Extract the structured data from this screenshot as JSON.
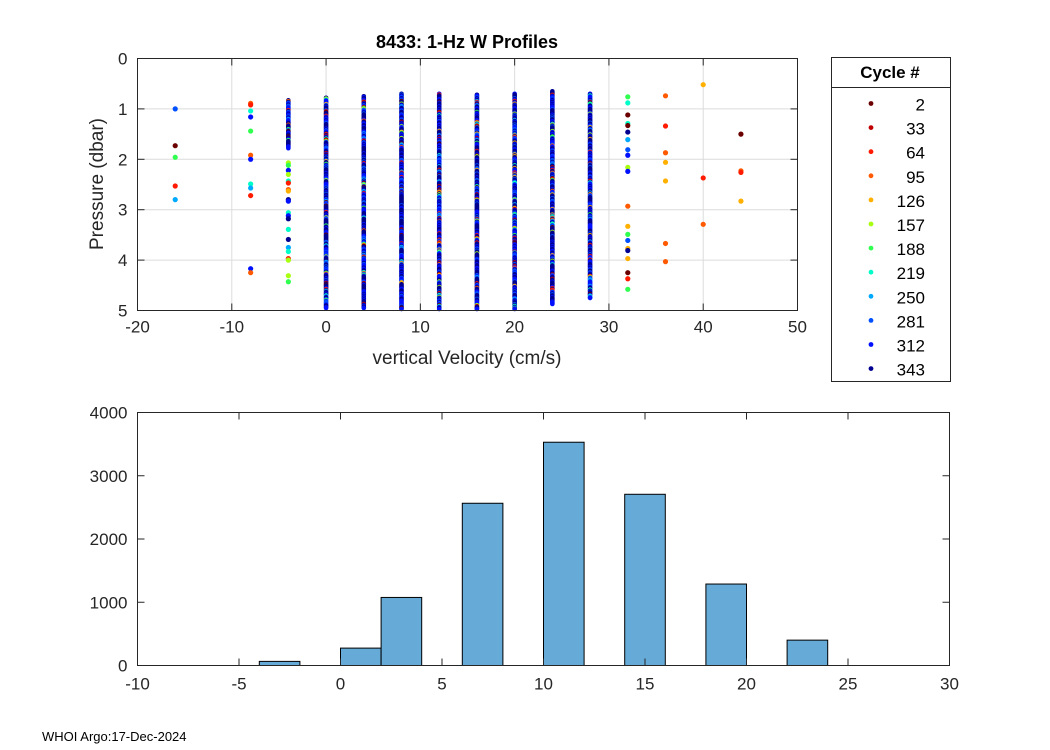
{
  "footer": "WHOI Argo:17-Dec-2024",
  "chart_data": [
    {
      "type": "scatter",
      "title": "8433: 1-Hz W Profiles",
      "xlabel": "vertical Velocity (cm/s)",
      "ylabel": "Pressure (dbar)",
      "xlim": [
        -20,
        50
      ],
      "ylim": [
        0,
        5
      ],
      "y_reversed": true,
      "grid": true,
      "xticks": [
        -20,
        -10,
        0,
        10,
        20,
        30,
        40,
        50
      ],
      "yticks": [
        0,
        1,
        2,
        3,
        4,
        5
      ],
      "legend": {
        "title": "Cycle #",
        "placement": "outside-right",
        "entries": [
          {
            "label": "2",
            "color": "#6b0000"
          },
          {
            "label": "33",
            "color": "#c00000"
          },
          {
            "label": "64",
            "color": "#ff1a00"
          },
          {
            "label": "95",
            "color": "#ff5a00"
          },
          {
            "label": "126",
            "color": "#ffb000"
          },
          {
            "label": "157",
            "color": "#a8ff10"
          },
          {
            "label": "188",
            "color": "#30ff50"
          },
          {
            "label": "219",
            "color": "#00ffc8"
          },
          {
            "label": "250",
            "color": "#00aaff"
          },
          {
            "label": "281",
            "color": "#0050ff"
          },
          {
            "label": "312",
            "color": "#0010ff"
          },
          {
            "label": "343",
            "color": "#000090"
          }
        ]
      },
      "sparse_points": [
        {
          "v": -16,
          "p": 1.0,
          "cycle": "281"
        },
        {
          "v": -16,
          "p": 1.73,
          "cycle": "2"
        },
        {
          "v": -16,
          "p": 1.96,
          "cycle": "188"
        },
        {
          "v": -16,
          "p": 2.53,
          "cycle": "64"
        },
        {
          "v": -16,
          "p": 2.8,
          "cycle": "250"
        },
        {
          "v": -8,
          "p": 0.89,
          "cycle": "95"
        },
        {
          "v": -8,
          "p": 0.92,
          "cycle": "64"
        },
        {
          "v": -8,
          "p": 1.04,
          "cycle": "219"
        },
        {
          "v": -8,
          "p": 1.16,
          "cycle": "312"
        },
        {
          "v": -8,
          "p": 1.44,
          "cycle": "188"
        },
        {
          "v": -8,
          "p": 1.92,
          "cycle": "95"
        },
        {
          "v": -8,
          "p": 2.0,
          "cycle": "312"
        },
        {
          "v": -8,
          "p": 2.49,
          "cycle": "219"
        },
        {
          "v": -8,
          "p": 2.57,
          "cycle": "250"
        },
        {
          "v": -8,
          "p": 2.72,
          "cycle": "64"
        },
        {
          "v": -8,
          "p": 4.17,
          "cycle": "312"
        },
        {
          "v": -8,
          "p": 4.25,
          "cycle": "95"
        },
        {
          "v": -4,
          "p": 2.07,
          "cycle": "157"
        },
        {
          "v": -4,
          "p": 2.12,
          "cycle": "188"
        },
        {
          "v": -4,
          "p": 2.22,
          "cycle": "312"
        },
        {
          "v": -4,
          "p": 2.3,
          "cycle": "157"
        },
        {
          "v": -4,
          "p": 2.43,
          "cycle": "219"
        },
        {
          "v": -4,
          "p": 2.47,
          "cycle": "64"
        },
        {
          "v": -4,
          "p": 2.6,
          "cycle": "95"
        },
        {
          "v": -4,
          "p": 2.63,
          "cycle": "126"
        },
        {
          "v": -4,
          "p": 2.8,
          "cycle": "343"
        },
        {
          "v": -4,
          "p": 2.83,
          "cycle": "312"
        },
        {
          "v": -4,
          "p": 3.06,
          "cycle": "219"
        },
        {
          "v": -4,
          "p": 3.12,
          "cycle": "312"
        },
        {
          "v": -4,
          "p": 3.18,
          "cycle": "343"
        },
        {
          "v": -4,
          "p": 3.39,
          "cycle": "219"
        },
        {
          "v": -4,
          "p": 3.59,
          "cycle": "343"
        },
        {
          "v": -4,
          "p": 3.75,
          "cycle": "250"
        },
        {
          "v": -4,
          "p": 3.83,
          "cycle": "219"
        },
        {
          "v": -4,
          "p": 3.97,
          "cycle": "64"
        },
        {
          "v": -4,
          "p": 4.0,
          "cycle": "157"
        },
        {
          "v": -4,
          "p": 4.31,
          "cycle": "157"
        },
        {
          "v": -4,
          "p": 4.43,
          "cycle": "188"
        },
        {
          "v": 32,
          "p": 0.76,
          "cycle": "188"
        },
        {
          "v": 32,
          "p": 0.88,
          "cycle": "219"
        },
        {
          "v": 32,
          "p": 1.12,
          "cycle": "2"
        },
        {
          "v": 32,
          "p": 1.29,
          "cycle": "219"
        },
        {
          "v": 32,
          "p": 1.33,
          "cycle": "2"
        },
        {
          "v": 32,
          "p": 1.46,
          "cycle": "343"
        },
        {
          "v": 32,
          "p": 1.61,
          "cycle": "250"
        },
        {
          "v": 32,
          "p": 1.81,
          "cycle": "281"
        },
        {
          "v": 32,
          "p": 1.92,
          "cycle": "312"
        },
        {
          "v": 32,
          "p": 2.16,
          "cycle": "157"
        },
        {
          "v": 32,
          "p": 2.24,
          "cycle": "312"
        },
        {
          "v": 32,
          "p": 2.93,
          "cycle": "95"
        },
        {
          "v": 32,
          "p": 3.33,
          "cycle": "126"
        },
        {
          "v": 32,
          "p": 3.49,
          "cycle": "188"
        },
        {
          "v": 32,
          "p": 3.61,
          "cycle": "281"
        },
        {
          "v": 32,
          "p": 3.77,
          "cycle": "126"
        },
        {
          "v": 32,
          "p": 3.81,
          "cycle": "343"
        },
        {
          "v": 32,
          "p": 3.97,
          "cycle": "126"
        },
        {
          "v": 32,
          "p": 4.25,
          "cycle": "2"
        },
        {
          "v": 32,
          "p": 4.37,
          "cycle": "64"
        },
        {
          "v": 32,
          "p": 4.58,
          "cycle": "188"
        },
        {
          "v": 36,
          "p": 0.74,
          "cycle": "95"
        },
        {
          "v": 36,
          "p": 1.34,
          "cycle": "64"
        },
        {
          "v": 36,
          "p": 1.87,
          "cycle": "95"
        },
        {
          "v": 36,
          "p": 2.06,
          "cycle": "126"
        },
        {
          "v": 36,
          "p": 2.43,
          "cycle": "126"
        },
        {
          "v": 36,
          "p": 3.67,
          "cycle": "95"
        },
        {
          "v": 36,
          "p": 4.03,
          "cycle": "95"
        },
        {
          "v": 40,
          "p": 0.52,
          "cycle": "126"
        },
        {
          "v": 40,
          "p": 2.37,
          "cycle": "64"
        },
        {
          "v": 40,
          "p": 3.29,
          "cycle": "95"
        },
        {
          "v": 44,
          "p": 1.5,
          "cycle": "2"
        },
        {
          "v": 44,
          "p": 2.23,
          "cycle": "95"
        },
        {
          "v": 44,
          "p": 2.26,
          "cycle": "64"
        },
        {
          "v": 44,
          "p": 2.83,
          "cycle": "126"
        }
      ],
      "dense_columns": [
        {
          "v": -4,
          "pmin": 0.83,
          "pmax": 1.78
        },
        {
          "v": 0,
          "pmin": 0.78,
          "pmax": 4.95
        },
        {
          "v": 4,
          "pmin": 0.75,
          "pmax": 4.95
        },
        {
          "v": 8,
          "pmin": 0.7,
          "pmax": 4.97
        },
        {
          "v": 12,
          "pmin": 0.7,
          "pmax": 4.97
        },
        {
          "v": 16,
          "pmin": 0.72,
          "pmax": 4.97
        },
        {
          "v": 20,
          "pmin": 0.7,
          "pmax": 4.97
        },
        {
          "v": 24,
          "pmin": 0.65,
          "pmax": 4.87
        },
        {
          "v": 28,
          "pmin": 0.7,
          "pmax": 4.75
        }
      ]
    },
    {
      "type": "bar",
      "subtype": "histogram",
      "xlim": [
        -10,
        30
      ],
      "ylim": [
        0,
        4000
      ],
      "xticks": [
        -10,
        -5,
        0,
        5,
        10,
        15,
        20,
        25,
        30
      ],
      "yticks": [
        0,
        1000,
        2000,
        3000,
        4000
      ],
      "grid": false,
      "bar_color": "#66aad7",
      "bins": [
        {
          "from": -4,
          "to": -2,
          "count": 65
        },
        {
          "from": 0,
          "to": 2,
          "count": 275
        },
        {
          "from": 2,
          "to": 4,
          "count": 1076
        },
        {
          "from": 6,
          "to": 8,
          "count": 2565
        },
        {
          "from": 10,
          "to": 12,
          "count": 3530
        },
        {
          "from": 14,
          "to": 16,
          "count": 2707
        },
        {
          "from": 18,
          "to": 20,
          "count": 1288
        },
        {
          "from": 22,
          "to": 24,
          "count": 401
        }
      ]
    }
  ]
}
